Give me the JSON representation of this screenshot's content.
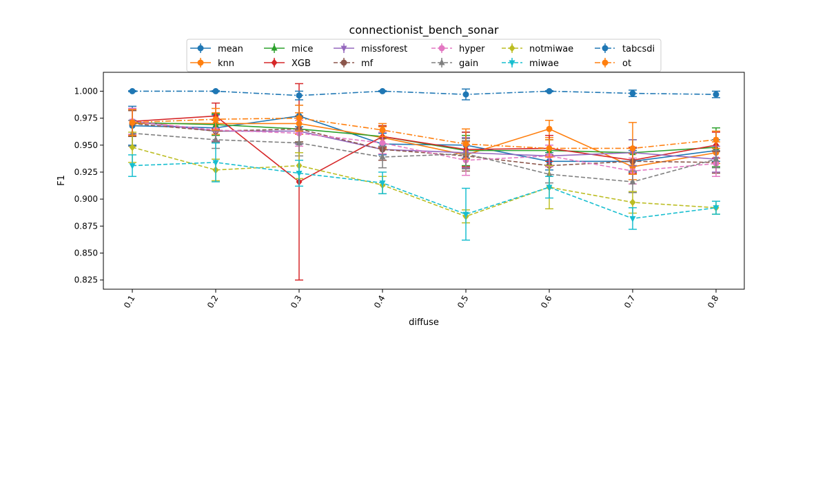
{
  "chart_data": {
    "type": "line",
    "title": "connectionist_bench_sonar",
    "xlabel": "diffuse",
    "ylabel": "F1",
    "x": [
      "0.1",
      "0.2",
      "0.3",
      "0.4",
      "0.5",
      "0.6",
      "0.7",
      "0.8"
    ],
    "ylim": [
      0.8165,
      1.0175
    ],
    "yticks": [
      "0.825",
      "0.850",
      "0.875",
      "0.900",
      "0.925",
      "0.950",
      "0.975",
      "1.000"
    ],
    "grid": false,
    "legend_position": "top-center",
    "series": [
      {
        "name": "mean",
        "color": "#1f77b4",
        "linestyle": "solid",
        "marker": "circle",
        "values": [
          0.968,
          0.966,
          0.977,
          0.951,
          0.95,
          0.935,
          0.935,
          0.945
        ],
        "errors": [
          0.018,
          0.012,
          0.01,
          0.01,
          0.012,
          0.008,
          0.01,
          0.01
        ]
      },
      {
        "name": "knn",
        "color": "#ff7f0e",
        "linestyle": "solid",
        "marker": "circle",
        "values": [
          0.97,
          0.97,
          0.97,
          0.957,
          0.941,
          0.965,
          0.93,
          0.943
        ],
        "errors": [
          0.012,
          0.01,
          0.01,
          0.01,
          0.012,
          0.008,
          0.012,
          0.01
        ]
      },
      {
        "name": "mice",
        "color": "#2ca02c",
        "linestyle": "solid",
        "marker": "triangle-up",
        "values": [
          0.971,
          0.969,
          0.965,
          0.958,
          0.945,
          0.945,
          0.943,
          0.948
        ],
        "errors": [
          0.012,
          0.01,
          0.012,
          0.01,
          0.014,
          0.01,
          0.012,
          0.018
        ]
      },
      {
        "name": "XGB",
        "color": "#d62728",
        "linestyle": "solid",
        "marker": "diamond",
        "values": [
          0.972,
          0.977,
          0.916,
          0.958,
          0.946,
          0.947,
          0.936,
          0.95
        ],
        "errors": [
          0.012,
          0.012,
          0.091,
          0.01,
          0.016,
          0.012,
          0.012,
          0.012
        ]
      },
      {
        "name": "missforest",
        "color": "#9467bd",
        "linestyle": "solid",
        "marker": "triangle-down",
        "values": [
          0.972,
          0.963,
          0.963,
          0.946,
          0.943,
          0.94,
          0.943,
          0.937
        ],
        "errors": [
          0.012,
          0.01,
          0.012,
          0.01,
          0.014,
          0.01,
          0.012,
          0.012
        ]
      },
      {
        "name": "mf",
        "color": "#8c564b",
        "linestyle": "dashed",
        "marker": "circle",
        "values": [
          0.97,
          0.963,
          0.965,
          0.946,
          0.94,
          0.931,
          0.935,
          0.934
        ],
        "errors": [
          0.012,
          0.01,
          0.012,
          0.01,
          0.014,
          0.01,
          0.012,
          0.01
        ]
      },
      {
        "name": "hyper",
        "color": "#e377c2",
        "linestyle": "dashed",
        "marker": "circle",
        "values": [
          0.972,
          0.964,
          0.961,
          0.952,
          0.936,
          0.94,
          0.926,
          0.933
        ],
        "errors": [
          0.012,
          0.01,
          0.012,
          0.01,
          0.014,
          0.01,
          0.012,
          0.012
        ]
      },
      {
        "name": "gain",
        "color": "#7f7f7f",
        "linestyle": "dashed",
        "marker": "triangle-up",
        "values": [
          0.961,
          0.955,
          0.952,
          0.939,
          0.942,
          0.923,
          0.916,
          0.937
        ],
        "errors": [
          0.012,
          0.008,
          0.012,
          0.01,
          0.014,
          0.008,
          0.01,
          0.008
        ]
      },
      {
        "name": "notmiwae",
        "color": "#bcbd22",
        "linestyle": "dashed",
        "marker": "diamond",
        "values": [
          0.948,
          0.927,
          0.931,
          0.913,
          0.884,
          0.911,
          0.897,
          0.892
        ],
        "errors": [
          0.014,
          0.01,
          0.012,
          0.008,
          0.006,
          0.02,
          0.01,
          0.006
        ]
      },
      {
        "name": "miwae",
        "color": "#17becf",
        "linestyle": "dashed",
        "marker": "triangle-down",
        "values": [
          0.931,
          0.934,
          0.924,
          0.915,
          0.886,
          0.911,
          0.882,
          0.892
        ],
        "errors": [
          0.01,
          0.018,
          0.012,
          0.01,
          0.024,
          0.01,
          0.01,
          0.006
        ]
      },
      {
        "name": "tabcsdi",
        "color": "#1f77b4",
        "linestyle": "dashdot",
        "marker": "circle",
        "values": [
          1.0,
          1.0,
          0.996,
          1.0,
          0.997,
          1.0,
          0.998,
          0.997
        ],
        "errors": [
          0.0005,
          0.0005,
          0.004,
          0.0005,
          0.005,
          0.0005,
          0.003,
          0.003
        ]
      },
      {
        "name": "ot",
        "color": "#ff7f0e",
        "linestyle": "dashdot",
        "marker": "circle",
        "values": [
          0.971,
          0.974,
          0.975,
          0.964,
          0.951,
          0.947,
          0.947,
          0.955
        ],
        "errors": [
          0.012,
          0.01,
          0.012,
          0.006,
          0.014,
          0.008,
          0.024,
          0.008
        ]
      }
    ]
  }
}
